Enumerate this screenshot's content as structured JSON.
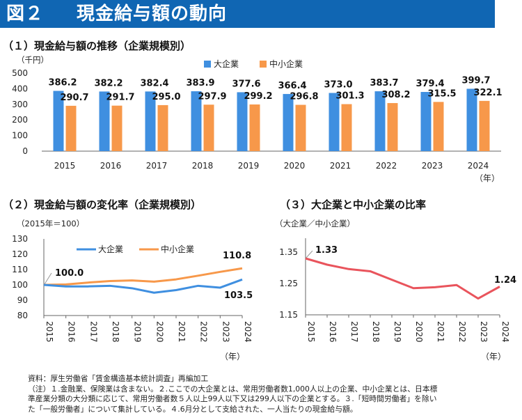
{
  "header": {
    "number": "図２",
    "title": "現金給与額の動向"
  },
  "chart_data": [
    {
      "type": "bar",
      "title": "（１）現金給与額の推移（企業規模別）",
      "ylabel": "（千円）",
      "xlabel": "（年）",
      "categories": [
        "2015",
        "2016",
        "2017",
        "2018",
        "2019",
        "2020",
        "2021",
        "2022",
        "2023",
        "2024"
      ],
      "ylim": [
        0,
        500
      ],
      "yticks": [
        0,
        100,
        200,
        300,
        400,
        500
      ],
      "legend_position": "top-center",
      "series": [
        {
          "name": "大企業",
          "color": "#3f8fe0",
          "values": [
            386.2,
            382.2,
            382.4,
            383.9,
            377.6,
            366.4,
            373.0,
            383.7,
            379.4,
            399.7
          ],
          "labels": [
            "386.2",
            "382.2",
            "382.4",
            "383.9",
            "377.6",
            "366.4",
            "373.0",
            "383.7",
            "379.4",
            "399.7"
          ]
        },
        {
          "name": "中小企業",
          "color": "#f7984a",
          "values": [
            290.7,
            291.7,
            295.0,
            297.9,
            299.2,
            296.8,
            301.3,
            308.2,
            315.5,
            322.1
          ],
          "labels": [
            "290.7",
            "291.7",
            "295.0",
            "297.9",
            "299.2",
            "296.8",
            "301.3",
            "308.2",
            "315.5",
            "322.1"
          ]
        }
      ]
    },
    {
      "type": "line",
      "title": "（２）現金給与額の変化率（企業規模別）",
      "ylabel": "（2015年＝100）",
      "xlabel": "（年）",
      "x": [
        "2015",
        "2016",
        "2017",
        "2018",
        "2019",
        "2020",
        "2021",
        "2022",
        "2023",
        "2024"
      ],
      "ylim": [
        80,
        130
      ],
      "yticks": [
        80,
        90,
        100,
        110,
        120,
        130
      ],
      "legend_position": "top",
      "series": [
        {
          "name": "大企業",
          "color": "#3f8fe0",
          "values": [
            100.0,
            99.0,
            99.0,
            99.4,
            97.8,
            94.9,
            96.6,
            99.4,
            98.2,
            103.5
          ]
        },
        {
          "name": "中小企業",
          "color": "#f7984a",
          "values": [
            100.0,
            100.3,
            101.5,
            102.5,
            102.9,
            102.1,
            103.6,
            106.0,
            108.5,
            110.8
          ]
        }
      ],
      "annotations": {
        "start": "100.0",
        "large_end": "103.5",
        "small_end": "110.8"
      }
    },
    {
      "type": "line",
      "title": "（３）大企業と中小企業の比率",
      "ylabel": "（大企業／中小企業）",
      "xlabel": "（年）",
      "x": [
        "2015",
        "2016",
        "2017",
        "2018",
        "2019",
        "2020",
        "2021",
        "2022",
        "2023",
        "2024"
      ],
      "ylim": [
        1.15,
        1.35
      ],
      "yticks": [
        "1.15",
        "1.25",
        "1.35"
      ],
      "series": [
        {
          "name": "",
          "color": "#e9545c",
          "values": [
            1.33,
            1.31,
            1.296,
            1.289,
            1.262,
            1.235,
            1.238,
            1.245,
            1.202,
            1.24
          ]
        }
      ],
      "annotations": {
        "start": "1.33",
        "end": "1.24"
      }
    }
  ],
  "footer": {
    "source": "資料：厚生労働省「賃金構造基本統計調査」再編加工",
    "note1": "（注）１.金融業、保険業は含まない。２.ここでの大企業とは、常用労働者数1,000人以上の企業、中小企業とは、日本標",
    "note2": "準産業分類の大分類に応じて、常用労働者数５人以上99人以下又は299人以下の企業とする。３.「短時間労働者」を除い",
    "note3": "た「一般労働者」について集計している。４.6月分として支給された、一人当たりの現金給与額。"
  }
}
